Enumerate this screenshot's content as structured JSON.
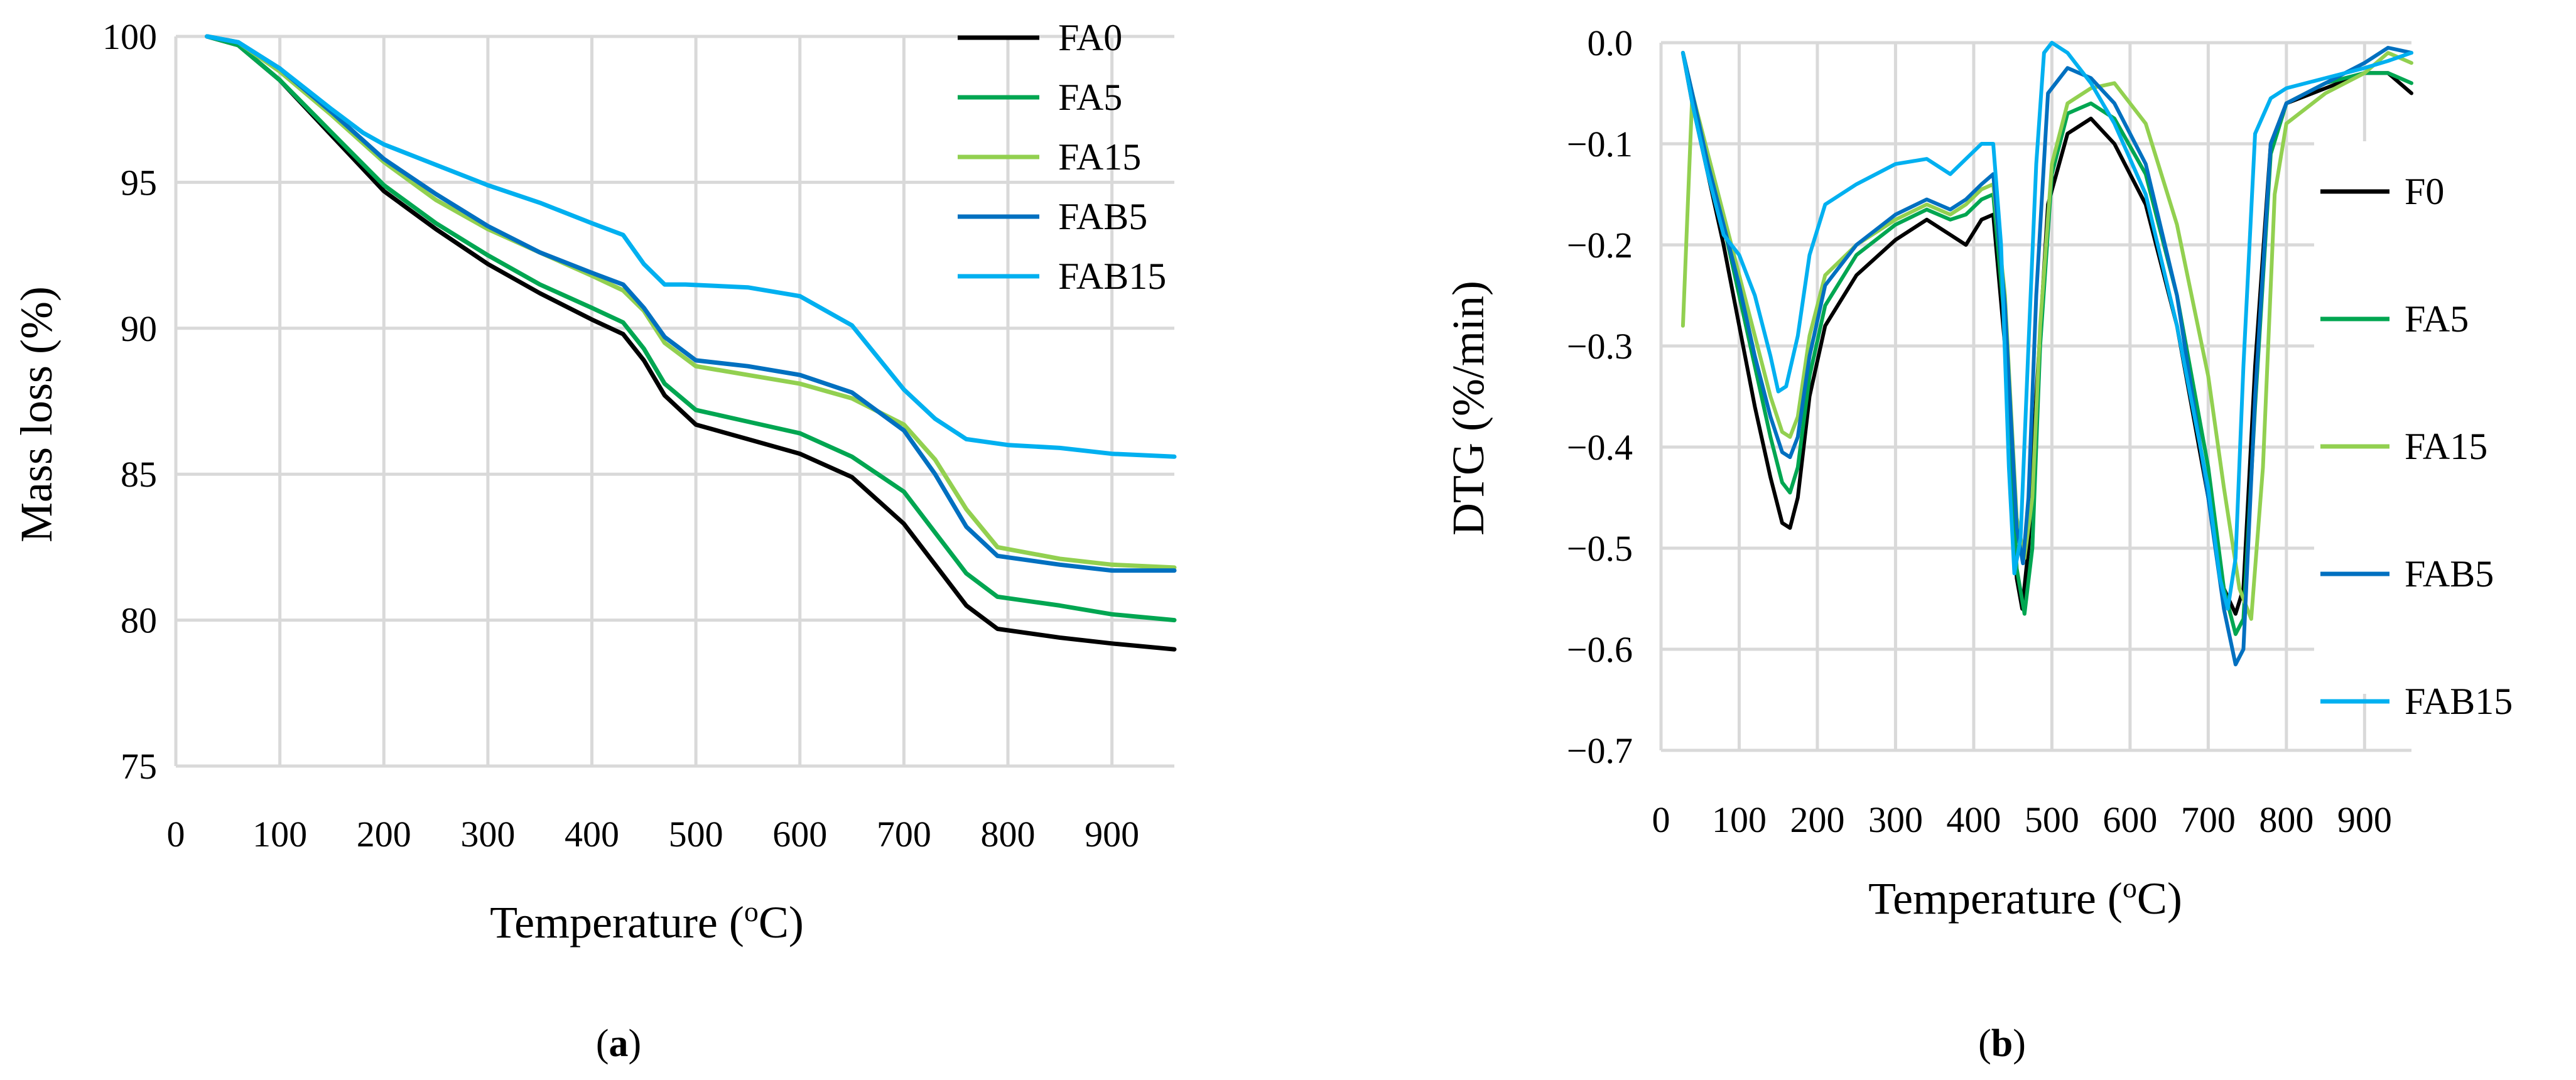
{
  "figure_panels": [
    "(a)",
    "(b)"
  ],
  "panel_labels": [
    {
      "open": "(",
      "letter": "a",
      "close": ")"
    },
    {
      "open": "(",
      "letter": "b",
      "close": ")"
    }
  ],
  "colors": {
    "FA0": "#000000",
    "FA5": "#00a651",
    "FA15": "#92d050",
    "FAB5": "#0070c0",
    "FAB15": "#00b0f0",
    "grid": "#d9d9d9"
  },
  "chart_data": [
    {
      "type": "line",
      "title": "",
      "panel": "a",
      "xlabel": "Temperature (oC)",
      "xlabel_parts": {
        "main": "Temperature (",
        "sup": "o",
        "rest": "C)"
      },
      "ylabel": "Mass loss (%)",
      "xlim": [
        0,
        960
      ],
      "ylim": [
        75,
        100
      ],
      "xticks": [
        0,
        100,
        200,
        300,
        400,
        500,
        600,
        700,
        800,
        900
      ],
      "yticks": [
        75,
        80,
        85,
        90,
        95,
        100
      ],
      "grid": true,
      "legend_position": "top-right",
      "series": [
        {
          "name": "FA0",
          "color": "#000000",
          "x": [
            30,
            60,
            100,
            150,
            200,
            250,
            300,
            350,
            400,
            430,
            450,
            470,
            500,
            550,
            600,
            650,
            700,
            730,
            760,
            790,
            850,
            900,
            960
          ],
          "y": [
            100,
            99.7,
            98.5,
            96.6,
            94.7,
            93.4,
            92.2,
            91.2,
            90.3,
            89.8,
            88.9,
            87.7,
            86.7,
            86.2,
            85.7,
            84.9,
            83.3,
            81.9,
            80.5,
            79.7,
            79.4,
            79.2,
            79.0
          ]
        },
        {
          "name": "FA5",
          "color": "#00a651",
          "x": [
            30,
            60,
            100,
            150,
            200,
            250,
            300,
            350,
            400,
            430,
            450,
            470,
            500,
            550,
            600,
            650,
            700,
            730,
            760,
            790,
            850,
            900,
            960
          ],
          "y": [
            100,
            99.7,
            98.5,
            96.7,
            94.9,
            93.6,
            92.5,
            91.5,
            90.7,
            90.2,
            89.3,
            88.1,
            87.2,
            86.8,
            86.4,
            85.6,
            84.4,
            83.0,
            81.6,
            80.8,
            80.5,
            80.2,
            80.0
          ]
        },
        {
          "name": "FA15",
          "color": "#92d050",
          "x": [
            30,
            60,
            100,
            150,
            200,
            250,
            300,
            350,
            400,
            430,
            450,
            470,
            500,
            550,
            600,
            650,
            700,
            730,
            760,
            790,
            850,
            900,
            960
          ],
          "y": [
            100,
            99.8,
            98.8,
            97.3,
            95.7,
            94.4,
            93.4,
            92.6,
            91.8,
            91.3,
            90.6,
            89.5,
            88.7,
            88.4,
            88.1,
            87.6,
            86.7,
            85.5,
            83.8,
            82.5,
            82.1,
            81.9,
            81.8
          ]
        },
        {
          "name": "FAB5",
          "color": "#0070c0",
          "x": [
            30,
            60,
            100,
            150,
            200,
            250,
            300,
            350,
            400,
            430,
            450,
            470,
            500,
            550,
            600,
            650,
            700,
            730,
            760,
            790,
            850,
            900,
            960
          ],
          "y": [
            100,
            99.8,
            98.9,
            97.4,
            95.8,
            94.6,
            93.5,
            92.6,
            91.9,
            91.5,
            90.7,
            89.7,
            88.9,
            88.7,
            88.4,
            87.8,
            86.5,
            85.0,
            83.2,
            82.2,
            81.9,
            81.7,
            81.7
          ]
        },
        {
          "name": "FAB15",
          "color": "#00b0f0",
          "x": [
            30,
            60,
            100,
            150,
            180,
            200,
            250,
            300,
            350,
            400,
            430,
            450,
            470,
            490,
            550,
            600,
            650,
            700,
            730,
            760,
            800,
            850,
            900,
            960
          ],
          "y": [
            100,
            99.8,
            98.9,
            97.5,
            96.7,
            96.3,
            95.6,
            94.9,
            94.3,
            93.6,
            93.2,
            92.2,
            91.5,
            91.5,
            91.4,
            91.1,
            90.1,
            87.9,
            86.9,
            86.2,
            86.0,
            85.9,
            85.7,
            85.6
          ]
        }
      ]
    },
    {
      "type": "line",
      "title": "",
      "panel": "b",
      "xlabel": "Temperature (oC)",
      "xlabel_parts": {
        "main": "Temperature (",
        "sup": "o",
        "rest": "C)"
      },
      "ylabel": "DTG (%/min)",
      "xlim": [
        0,
        960
      ],
      "ylim": [
        -0.7,
        0.0
      ],
      "xticks": [
        0,
        100,
        200,
        300,
        400,
        500,
        600,
        700,
        800,
        900
      ],
      "yticks": [
        "0.0",
        "-0.1",
        "-0.2",
        "-0.3",
        "-0.4",
        "-0.5",
        "-0.6",
        "-0.7"
      ],
      "ytick_labels": [
        "0.0",
        "−0.1",
        "−0.2",
        "−0.3",
        "−0.4",
        "−0.5",
        "−0.6",
        "−0.7"
      ],
      "grid": true,
      "legend_position": "right",
      "series": [
        {
          "name": "F0",
          "color": "#000000",
          "x": [
            28,
            40,
            60,
            80,
            100,
            120,
            140,
            155,
            165,
            175,
            190,
            210,
            250,
            300,
            340,
            370,
            390,
            410,
            425,
            440,
            455,
            462,
            470,
            480,
            495,
            520,
            550,
            580,
            620,
            660,
            700,
            720,
            735,
            745,
            760,
            780,
            800,
            850,
            900,
            930,
            960
          ],
          "y": [
            -0.01,
            -0.06,
            -0.13,
            -0.2,
            -0.28,
            -0.36,
            -0.43,
            -0.475,
            -0.48,
            -0.45,
            -0.35,
            -0.28,
            -0.23,
            -0.195,
            -0.175,
            -0.19,
            -0.2,
            -0.175,
            -0.17,
            -0.3,
            -0.53,
            -0.56,
            -0.5,
            -0.35,
            -0.16,
            -0.09,
            -0.075,
            -0.1,
            -0.16,
            -0.28,
            -0.45,
            -0.54,
            -0.565,
            -0.54,
            -0.32,
            -0.1,
            -0.06,
            -0.045,
            -0.03,
            -0.03,
            -0.05
          ]
        },
        {
          "name": "FA5",
          "color": "#00a651",
          "x": [
            28,
            40,
            60,
            80,
            100,
            120,
            140,
            155,
            165,
            175,
            190,
            210,
            250,
            300,
            340,
            370,
            390,
            410,
            425,
            440,
            455,
            465,
            475,
            485,
            500,
            520,
            550,
            580,
            620,
            660,
            700,
            720,
            735,
            745,
            760,
            780,
            800,
            850,
            900,
            930,
            960
          ],
          "y": [
            -0.01,
            -0.05,
            -0.12,
            -0.18,
            -0.25,
            -0.32,
            -0.39,
            -0.435,
            -0.445,
            -0.42,
            -0.33,
            -0.26,
            -0.21,
            -0.18,
            -0.165,
            -0.175,
            -0.17,
            -0.155,
            -0.15,
            -0.28,
            -0.52,
            -0.565,
            -0.5,
            -0.3,
            -0.13,
            -0.07,
            -0.06,
            -0.075,
            -0.13,
            -0.25,
            -0.42,
            -0.54,
            -0.585,
            -0.57,
            -0.36,
            -0.11,
            -0.06,
            -0.04,
            -0.03,
            -0.03,
            -0.04
          ]
        },
        {
          "name": "FA15",
          "color": "#92d050",
          "x": [
            28,
            40,
            60,
            80,
            100,
            120,
            140,
            155,
            165,
            175,
            190,
            210,
            250,
            300,
            340,
            370,
            390,
            410,
            425,
            440,
            455,
            465,
            475,
            485,
            500,
            520,
            550,
            580,
            620,
            660,
            700,
            720,
            740,
            755,
            770,
            785,
            800,
            850,
            900,
            930,
            960
          ],
          "y": [
            -0.28,
            -0.05,
            -0.11,
            -0.17,
            -0.23,
            -0.29,
            -0.35,
            -0.385,
            -0.39,
            -0.37,
            -0.29,
            -0.23,
            -0.2,
            -0.175,
            -0.16,
            -0.17,
            -0.16,
            -0.145,
            -0.14,
            -0.25,
            -0.47,
            -0.51,
            -0.45,
            -0.28,
            -0.12,
            -0.06,
            -0.045,
            -0.04,
            -0.08,
            -0.18,
            -0.33,
            -0.44,
            -0.54,
            -0.57,
            -0.42,
            -0.15,
            -0.08,
            -0.05,
            -0.03,
            -0.01,
            -0.02
          ]
        },
        {
          "name": "FAB5",
          "color": "#0070c0",
          "x": [
            28,
            40,
            60,
            80,
            100,
            120,
            140,
            155,
            165,
            175,
            190,
            210,
            250,
            300,
            340,
            370,
            390,
            410,
            425,
            440,
            455,
            463,
            470,
            480,
            495,
            520,
            550,
            580,
            620,
            660,
            700,
            720,
            735,
            745,
            760,
            780,
            800,
            850,
            900,
            930,
            960
          ],
          "y": [
            -0.01,
            -0.05,
            -0.12,
            -0.18,
            -0.24,
            -0.31,
            -0.37,
            -0.405,
            -0.41,
            -0.39,
            -0.31,
            -0.24,
            -0.2,
            -0.17,
            -0.155,
            -0.165,
            -0.155,
            -0.14,
            -0.13,
            -0.26,
            -0.48,
            -0.515,
            -0.45,
            -0.25,
            -0.05,
            -0.025,
            -0.035,
            -0.06,
            -0.12,
            -0.25,
            -0.45,
            -0.56,
            -0.615,
            -0.6,
            -0.35,
            -0.1,
            -0.06,
            -0.04,
            -0.02,
            -0.005,
            -0.01
          ]
        },
        {
          "name": "FAB15",
          "color": "#00b0f0",
          "x": [
            28,
            40,
            60,
            80,
            100,
            120,
            140,
            150,
            160,
            175,
            190,
            210,
            250,
            300,
            340,
            370,
            390,
            410,
            425,
            435,
            445,
            452,
            460,
            470,
            480,
            490,
            500,
            520,
            550,
            580,
            620,
            660,
            700,
            715,
            725,
            735,
            745,
            760,
            780,
            800,
            850,
            900,
            930,
            960
          ],
          "y": [
            -0.01,
            -0.06,
            -0.13,
            -0.19,
            -0.21,
            -0.25,
            -0.31,
            -0.345,
            -0.34,
            -0.29,
            -0.21,
            -0.16,
            -0.14,
            -0.12,
            -0.115,
            -0.13,
            -0.115,
            -0.1,
            -0.1,
            -0.2,
            -0.42,
            -0.525,
            -0.49,
            -0.3,
            -0.12,
            -0.01,
            0.0,
            -0.01,
            -0.04,
            -0.08,
            -0.15,
            -0.28,
            -0.44,
            -0.53,
            -0.56,
            -0.51,
            -0.32,
            -0.09,
            -0.055,
            -0.045,
            -0.035,
            -0.025,
            -0.018,
            -0.01
          ]
        }
      ]
    }
  ]
}
